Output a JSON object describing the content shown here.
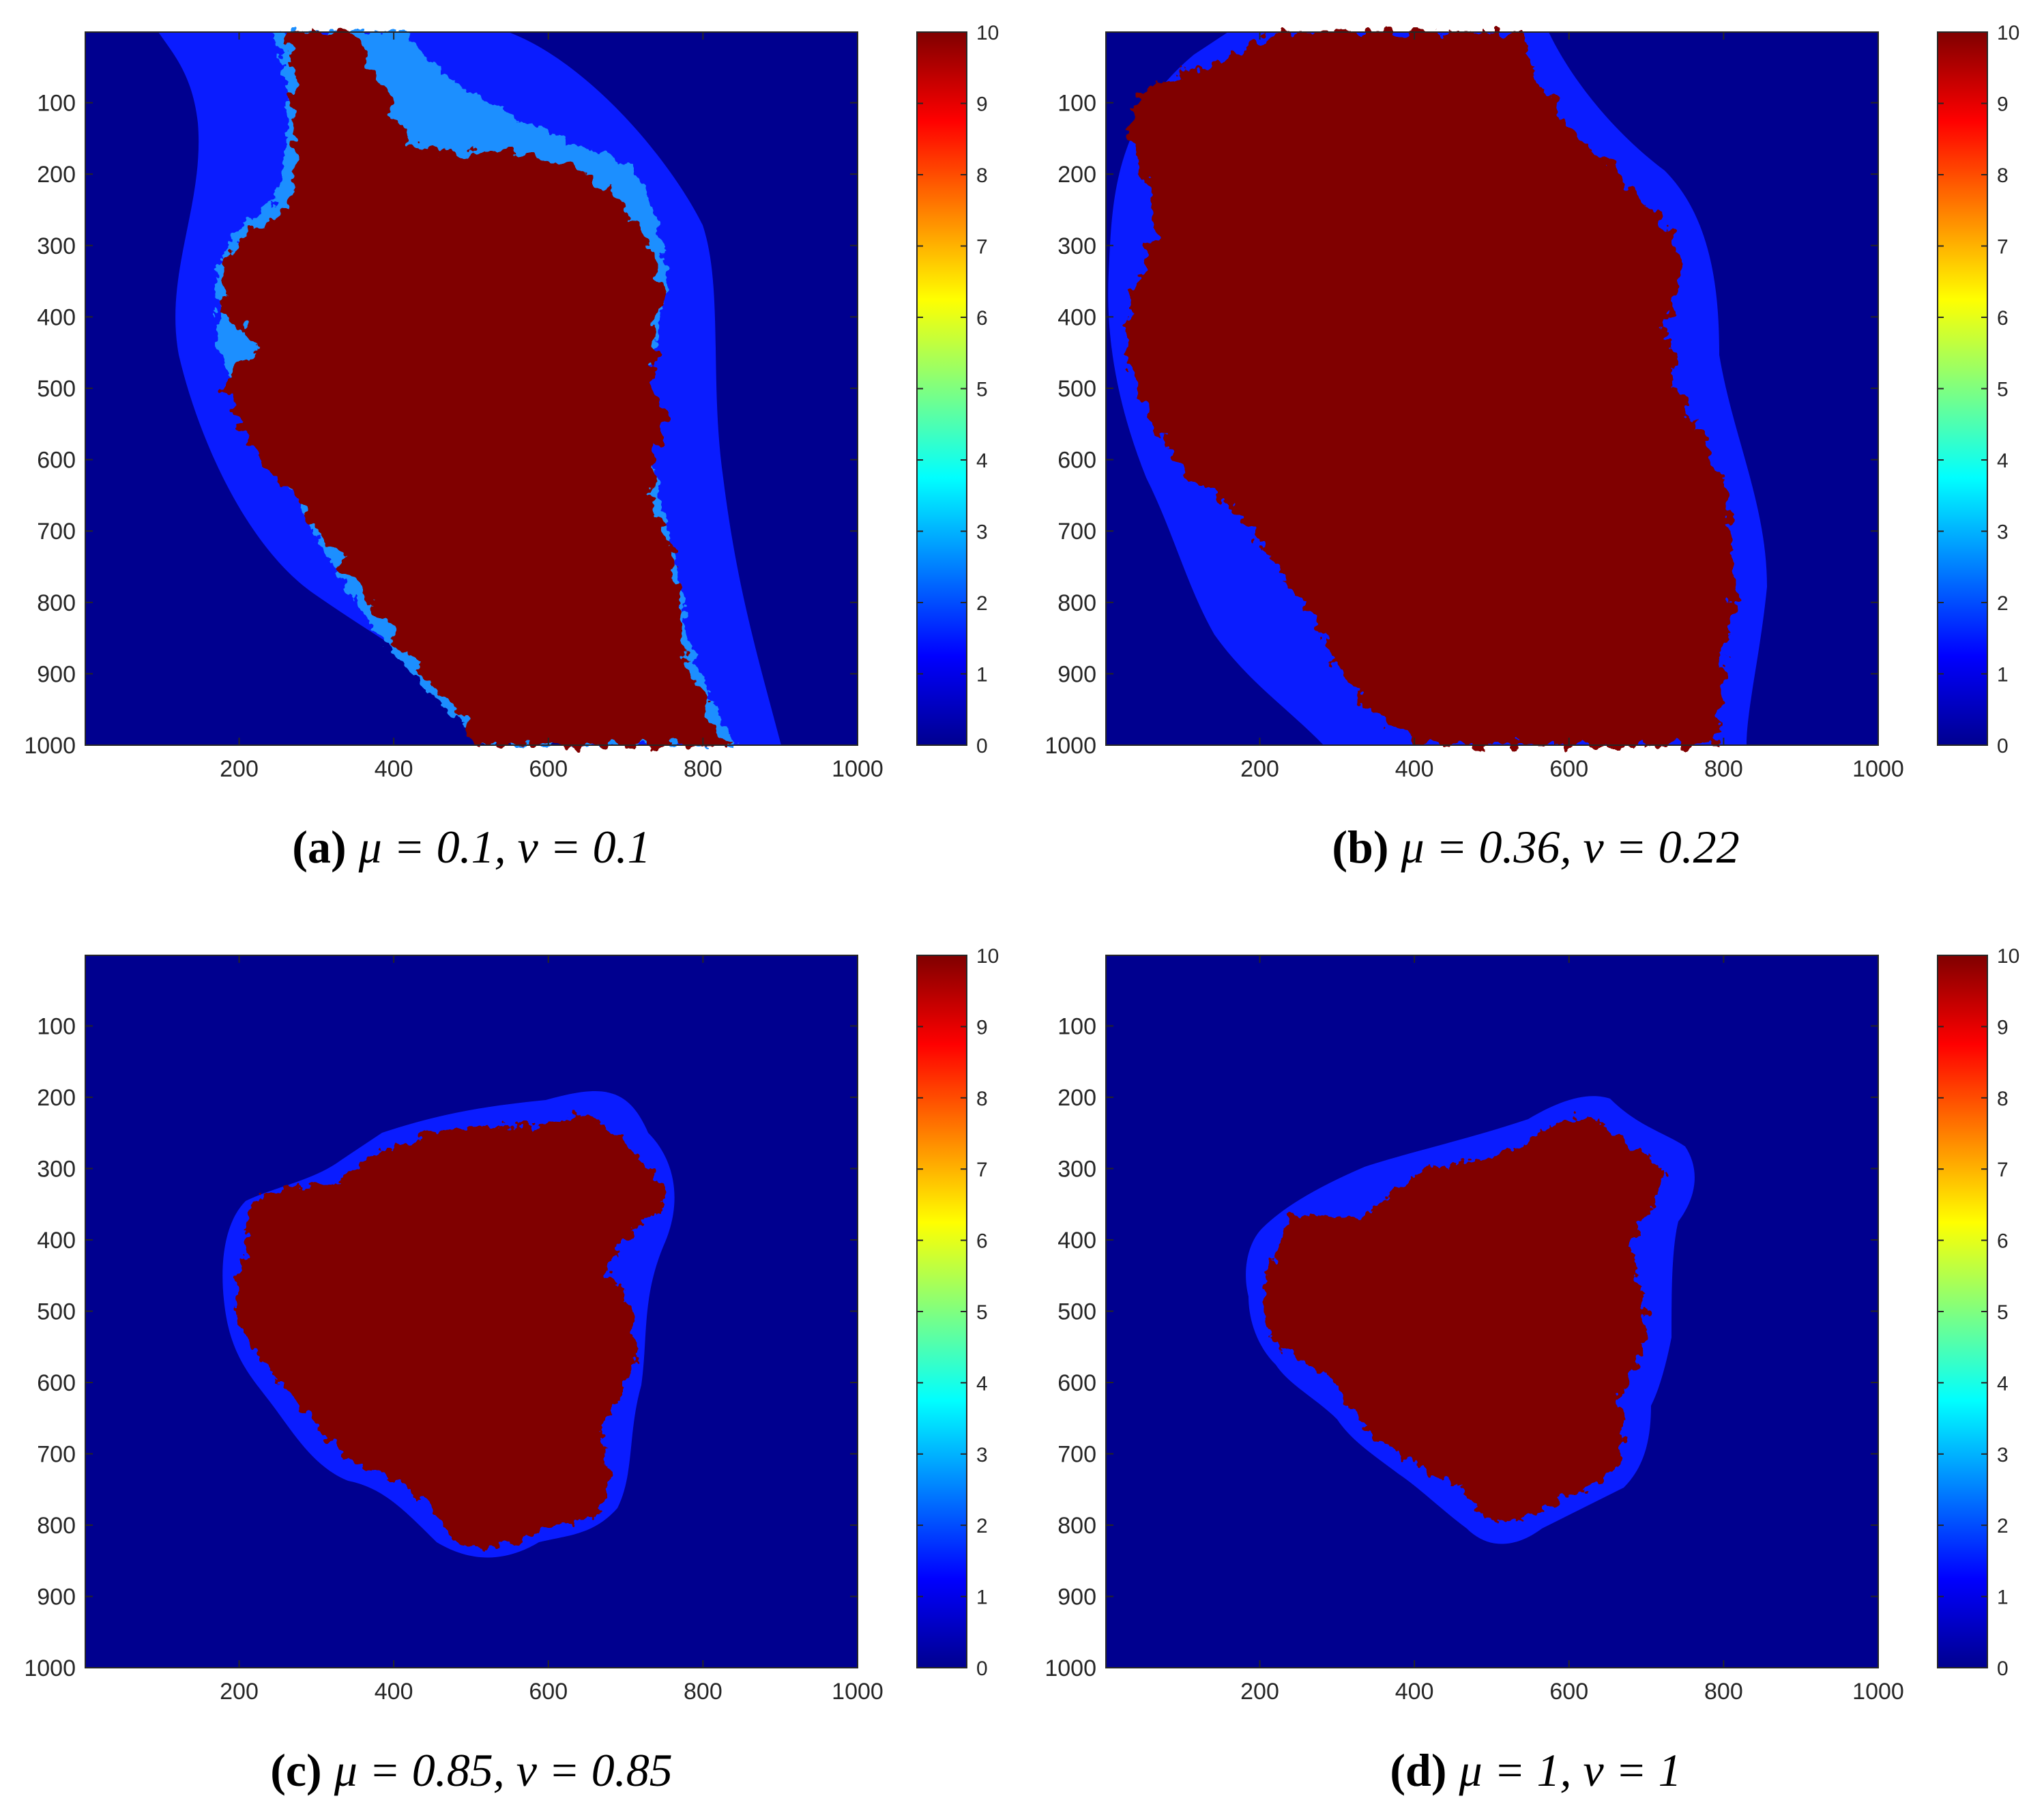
{
  "colormap": {
    "name": "jet",
    "stops": [
      "#00008f",
      "#0000ff",
      "#00ffff",
      "#ffff00",
      "#ff0000",
      "#800000"
    ],
    "background": "#00008f",
    "halo": "#0a1cff",
    "interior": "#800000",
    "boundary": "#1f8fff"
  },
  "chart_data": [
    {
      "type": "heatmap",
      "panel": "a",
      "caption": {
        "letter": "(a)",
        "text": "μ = 0.1, ν = 0.1"
      },
      "x_ticks": [
        "200",
        "400",
        "600",
        "800",
        "1000"
      ],
      "y_ticks": [
        "100",
        "200",
        "300",
        "400",
        "500",
        "600",
        "700",
        "800",
        "900",
        "1000"
      ],
      "xlim": [
        1,
        1000
      ],
      "ylim": [
        1,
        1000
      ],
      "colorbar": {
        "range": [
          0,
          10
        ],
        "ticks": [
          "0",
          "1",
          "2",
          "3",
          "4",
          "5",
          "6",
          "7",
          "8",
          "9",
          "10"
        ]
      },
      "region": "elongated diagonal fractal (Julia-type) set spanning top to bottom, interior value 10, surrounded by a value-1 halo on dark-blue value-0 background"
    },
    {
      "type": "heatmap",
      "panel": "b",
      "caption": {
        "letter": "(b)",
        "text": "μ = 0.36, ν = 0.22"
      },
      "x_ticks": [
        "200",
        "400",
        "600",
        "800",
        "1000"
      ],
      "y_ticks": [
        "100",
        "200",
        "300",
        "400",
        "500",
        "600",
        "700",
        "800",
        "900",
        "1000"
      ],
      "xlim": [
        1,
        1000
      ],
      "ylim": [
        1,
        1000
      ],
      "colorbar": {
        "range": [
          0,
          10
        ],
        "ticks": [
          "0",
          "1",
          "2",
          "3",
          "4",
          "5",
          "6",
          "7",
          "8",
          "9",
          "10"
        ]
      },
      "region": "broad vertical band fractal set spanning top to bottom, interior value 10, value-1 halo"
    },
    {
      "type": "heatmap",
      "panel": "c",
      "caption": {
        "letter": "(c)",
        "text": "μ = 0.85, ν = 0.85"
      },
      "x_ticks": [
        "200",
        "400",
        "600",
        "800",
        "1000"
      ],
      "y_ticks": [
        "100",
        "200",
        "300",
        "400",
        "500",
        "600",
        "700",
        "800",
        "900",
        "1000"
      ],
      "xlim": [
        1,
        1000
      ],
      "ylim": [
        1,
        1000
      ],
      "colorbar": {
        "range": [
          0,
          10
        ],
        "ticks": [
          "0",
          "1",
          "2",
          "3",
          "4",
          "5",
          "6",
          "7",
          "8",
          "9",
          "10"
        ]
      },
      "region": "compact three-lobed fractal set centred near (470, 500), interior value 10, value-1 halo"
    },
    {
      "type": "heatmap",
      "panel": "d",
      "caption": {
        "letter": "(d)",
        "text": "μ = 1, ν = 1"
      },
      "x_ticks": [
        "200",
        "400",
        "600",
        "800",
        "1000"
      ],
      "y_ticks": [
        "100",
        "200",
        "300",
        "400",
        "500",
        "600",
        "700",
        "800",
        "900",
        "1000"
      ],
      "xlim": [
        1,
        1000
      ],
      "ylim": [
        1,
        1000
      ],
      "colorbar": {
        "range": [
          0,
          10
        ],
        "ticks": [
          "0",
          "1",
          "2",
          "3",
          "4",
          "5",
          "6",
          "7",
          "8",
          "9",
          "10"
        ]
      },
      "region": "smaller three-lobed fractal set centred near (480, 510), interior value 10, value-1 halo"
    }
  ]
}
